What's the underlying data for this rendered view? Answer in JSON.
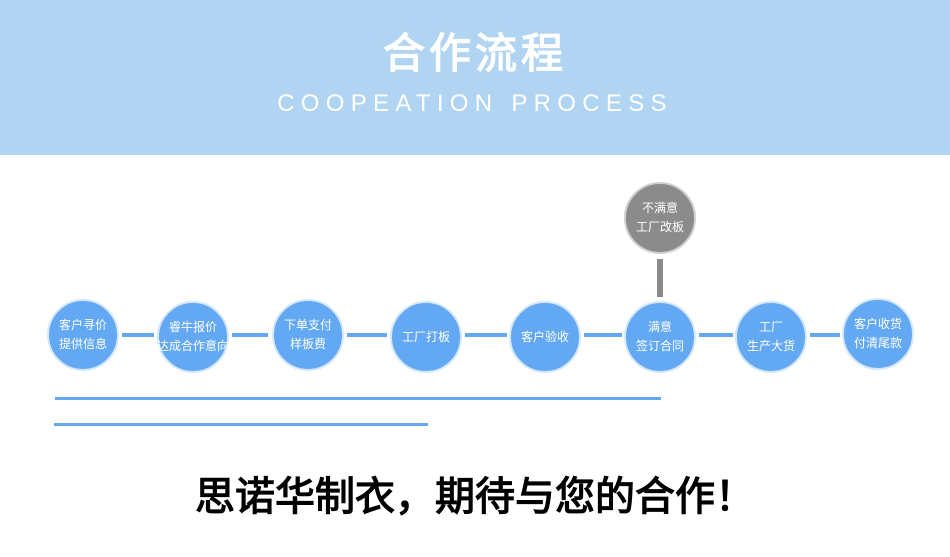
{
  "header": {
    "title": "合作流程",
    "subtitle": "COOPEATION PROCESS",
    "background_color": "#b0d4f1"
  },
  "steps": [
    {
      "line1": "客户寻价",
      "line2": "提供信息"
    },
    {
      "line1": "睿牛报价",
      "line2": "达成合作意向"
    },
    {
      "line1": "下单支付",
      "line2": "样板费"
    },
    {
      "line1": "工厂打板",
      "line2": ""
    },
    {
      "line1": "客户验收",
      "line2": ""
    },
    {
      "line1": "满意",
      "line2": "签订合同"
    },
    {
      "line1": "工厂",
      "line2": "生产大货"
    },
    {
      "line1": "客户收货",
      "line2": "付清尾款"
    }
  ],
  "branch": {
    "line1": "不满意",
    "line2": "工厂改板",
    "color": "#8b8b8b"
  },
  "accent_color": "#62a8f3",
  "slogan": "思诺华制衣，期待与您的合作！"
}
